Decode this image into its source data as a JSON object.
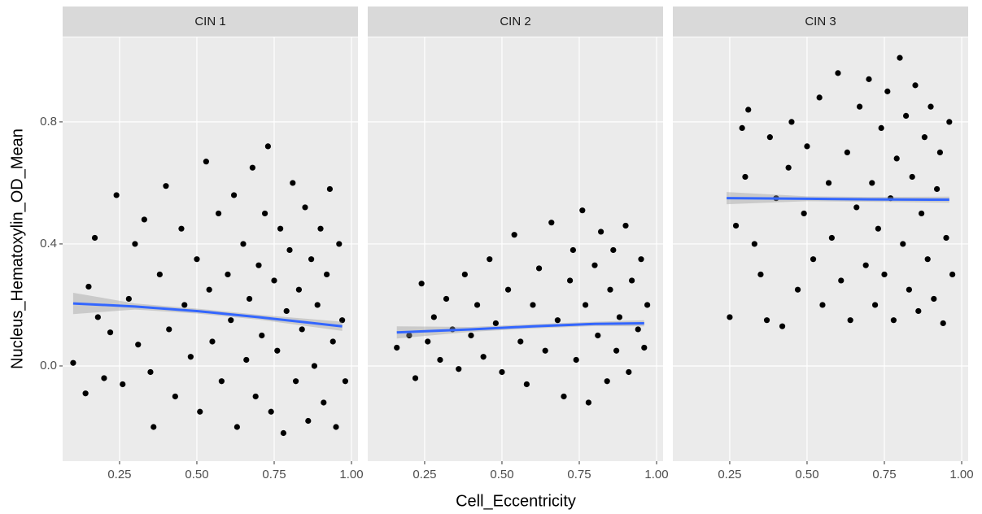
{
  "chart_data": {
    "type": "scatter",
    "xlabel": "Cell_Eccentricity",
    "ylabel": "Nucleus_Hematoxylin_OD_Mean",
    "xlim": [
      0.066,
      1.021
    ],
    "ylim": [
      -0.312,
      1.077
    ],
    "xticks": [
      0.25,
      {
        "value": 0.5,
        "label": "0.50"
      },
      0.75,
      {
        "value": 1,
        "label": "1.00"
      }
    ],
    "yticks": [
      {
        "value": 0,
        "label": "0.0"
      },
      0.4,
      0.8
    ],
    "grid": true,
    "point_color": "#000000",
    "smooth_color": "#3366FF",
    "band_color": "#999999",
    "panels": [
      {
        "title": "CIN 1",
        "x": [
          0.1,
          0.14,
          0.15,
          0.17,
          0.18,
          0.2,
          0.22,
          0.24,
          0.26,
          0.28,
          0.3,
          0.31,
          0.33,
          0.35,
          0.36,
          0.38,
          0.4,
          0.41,
          0.43,
          0.45,
          0.46,
          0.48,
          0.5,
          0.51,
          0.53,
          0.54,
          0.55,
          0.57,
          0.58,
          0.6,
          0.61,
          0.62,
          0.63,
          0.65,
          0.66,
          0.67,
          0.68,
          0.69,
          0.7,
          0.71,
          0.72,
          0.73,
          0.74,
          0.75,
          0.76,
          0.77,
          0.78,
          0.79,
          0.8,
          0.81,
          0.82,
          0.83,
          0.84,
          0.85,
          0.86,
          0.87,
          0.88,
          0.89,
          0.9,
          0.91,
          0.92,
          0.93,
          0.94,
          0.95,
          0.96,
          0.97,
          0.98
        ],
        "y": [
          0.01,
          -0.09,
          0.26,
          0.42,
          0.16,
          -0.04,
          0.11,
          0.56,
          -0.06,
          0.22,
          0.4,
          0.07,
          0.48,
          -0.02,
          -0.2,
          0.3,
          0.59,
          0.12,
          -0.1,
          0.45,
          0.2,
          0.03,
          0.35,
          -0.15,
          0.67,
          0.25,
          0.08,
          0.5,
          -0.05,
          0.3,
          0.15,
          0.56,
          -0.2,
          0.4,
          0.02,
          0.22,
          0.65,
          -0.1,
          0.33,
          0.1,
          0.5,
          0.72,
          -0.15,
          0.28,
          0.05,
          0.45,
          -0.22,
          0.18,
          0.38,
          0.6,
          -0.05,
          0.25,
          0.12,
          0.52,
          -0.18,
          0.35,
          0.0,
          0.2,
          0.45,
          -0.12,
          0.3,
          0.58,
          0.08,
          -0.2,
          0.4,
          0.15,
          -0.05
        ],
        "smooth": {
          "x": [
            0.1,
            0.3,
            0.5,
            0.7,
            0.97
          ],
          "y": [
            0.205,
            0.195,
            0.18,
            0.16,
            0.13
          ],
          "lower": [
            0.17,
            0.185,
            0.172,
            0.152,
            0.115
          ],
          "upper": [
            0.24,
            0.205,
            0.188,
            0.168,
            0.145
          ]
        }
      },
      {
        "title": "CIN 2",
        "x": [
          0.16,
          0.2,
          0.22,
          0.24,
          0.26,
          0.28,
          0.3,
          0.32,
          0.34,
          0.36,
          0.38,
          0.4,
          0.42,
          0.44,
          0.46,
          0.48,
          0.5,
          0.52,
          0.54,
          0.56,
          0.58,
          0.6,
          0.62,
          0.64,
          0.66,
          0.68,
          0.7,
          0.72,
          0.73,
          0.74,
          0.76,
          0.77,
          0.78,
          0.8,
          0.81,
          0.82,
          0.84,
          0.85,
          0.86,
          0.87,
          0.88,
          0.9,
          0.91,
          0.92,
          0.94,
          0.95,
          0.96,
          0.97
        ],
        "y": [
          0.06,
          0.1,
          -0.04,
          0.27,
          0.08,
          0.16,
          0.02,
          0.22,
          0.12,
          -0.01,
          0.3,
          0.1,
          0.2,
          0.03,
          0.35,
          0.14,
          -0.02,
          0.25,
          0.43,
          0.08,
          -0.06,
          0.2,
          0.32,
          0.05,
          0.47,
          0.15,
          -0.1,
          0.28,
          0.38,
          0.02,
          0.51,
          0.2,
          -0.12,
          0.33,
          0.1,
          0.44,
          -0.05,
          0.25,
          0.38,
          0.05,
          0.16,
          0.46,
          -0.02,
          0.28,
          0.12,
          0.35,
          0.06,
          0.2
        ],
        "smooth": {
          "x": [
            0.16,
            0.4,
            0.6,
            0.8,
            0.96
          ],
          "y": [
            0.11,
            0.12,
            0.13,
            0.138,
            0.14
          ],
          "lower": [
            0.09,
            0.112,
            0.123,
            0.131,
            0.13
          ],
          "upper": [
            0.13,
            0.128,
            0.137,
            0.145,
            0.15
          ]
        }
      },
      {
        "title": "CIN 3",
        "x": [
          0.25,
          0.27,
          0.29,
          0.3,
          0.31,
          0.33,
          0.35,
          0.37,
          0.38,
          0.4,
          0.42,
          0.44,
          0.45,
          0.47,
          0.49,
          0.5,
          0.52,
          0.54,
          0.55,
          0.57,
          0.58,
          0.6,
          0.61,
          0.63,
          0.64,
          0.66,
          0.67,
          0.69,
          0.7,
          0.71,
          0.72,
          0.73,
          0.74,
          0.75,
          0.76,
          0.77,
          0.78,
          0.79,
          0.8,
          0.81,
          0.82,
          0.83,
          0.84,
          0.85,
          0.86,
          0.87,
          0.88,
          0.89,
          0.9,
          0.91,
          0.92,
          0.93,
          0.94,
          0.95,
          0.96,
          0.97
        ],
        "y": [
          0.16,
          0.46,
          0.78,
          0.62,
          0.84,
          0.4,
          0.3,
          0.15,
          0.75,
          0.55,
          0.13,
          0.65,
          0.8,
          0.25,
          0.5,
          0.72,
          0.35,
          0.88,
          0.2,
          0.6,
          0.42,
          0.96,
          0.28,
          0.7,
          0.15,
          0.52,
          0.85,
          0.33,
          0.94,
          0.6,
          0.2,
          0.45,
          0.78,
          0.3,
          0.9,
          0.55,
          0.15,
          0.68,
          1.01,
          0.4,
          0.82,
          0.25,
          0.62,
          0.92,
          0.18,
          0.5,
          0.75,
          0.35,
          0.85,
          0.22,
          0.58,
          0.7,
          0.14,
          0.42,
          0.8,
          0.3
        ],
        "smooth": {
          "x": [
            0.24,
            0.5,
            0.7,
            0.96
          ],
          "y": [
            0.55,
            0.548,
            0.546,
            0.545
          ],
          "lower": [
            0.53,
            0.54,
            0.538,
            0.535
          ],
          "upper": [
            0.57,
            0.556,
            0.554,
            0.555
          ]
        }
      }
    ]
  }
}
